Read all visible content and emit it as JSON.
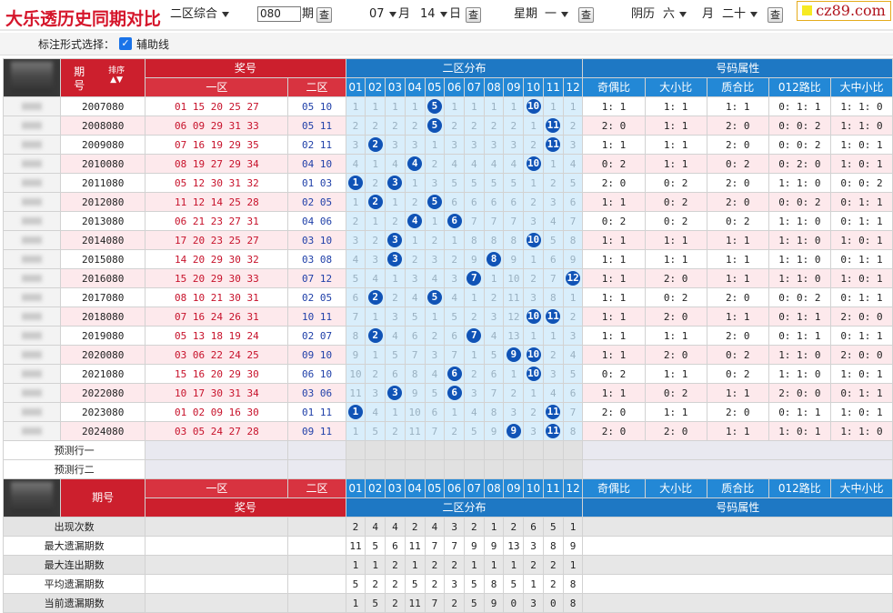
{
  "title": "大乐透历史同期对比",
  "toolbar": {
    "zone_select": "二区综合",
    "period_value": "080",
    "period_label": "期",
    "query_label": "查",
    "month_select": "07",
    "month_label": "月",
    "day_select": "14",
    "day_label": "日",
    "week_label": "星期",
    "week_select": "一",
    "lunar_label": "阴历",
    "lunar_month_select": "六",
    "lunar_month_label": "月",
    "lunar_day_select": "二十"
  },
  "logo": "cz89.com",
  "options": {
    "label": "标注形式选择：",
    "checkbox_label": "辅助线",
    "checked": true
  },
  "headers": {
    "period": "期号",
    "sort": "排序",
    "prize": "奖号",
    "zone1": "一区",
    "zone2": "二区",
    "dist": "二区分布",
    "attr": "号码属性",
    "nums": [
      "01",
      "02",
      "03",
      "04",
      "05",
      "06",
      "07",
      "08",
      "09",
      "10",
      "11",
      "12"
    ],
    "attrs": [
      "奇偶比",
      "大小比",
      "质合比",
      "012路比",
      "大中小比"
    ]
  },
  "rows": [
    {
      "period": "2007080",
      "z1": "01 15 20 25 27",
      "z2": "05 10",
      "dist": [
        "1",
        "1",
        "1",
        "1",
        "5",
        "1",
        "1",
        "1",
        "1",
        "10",
        "1",
        "1"
      ],
      "attr": [
        "1: 1",
        "1: 1",
        "1: 1",
        "0: 1: 1",
        "1: 1: 0"
      ]
    },
    {
      "period": "2008080",
      "z1": "06 09 29 31 33",
      "z2": "05 11",
      "dist": [
        "2",
        "2",
        "2",
        "2",
        "5",
        "2",
        "2",
        "2",
        "2",
        "1",
        "11",
        "2"
      ],
      "attr": [
        "2: 0",
        "1: 1",
        "2: 0",
        "0: 0: 2",
        "1: 1: 0"
      ]
    },
    {
      "period": "2009080",
      "z1": "07 16 19 29 35",
      "z2": "02 11",
      "dist": [
        "3",
        "2",
        "3",
        "3",
        "1",
        "3",
        "3",
        "3",
        "3",
        "2",
        "11",
        "3"
      ],
      "attr": [
        "1: 1",
        "1: 1",
        "2: 0",
        "0: 0: 2",
        "1: 0: 1"
      ]
    },
    {
      "period": "2010080",
      "z1": "08 19 27 29 34",
      "z2": "04 10",
      "dist": [
        "4",
        "1",
        "4",
        "4",
        "2",
        "4",
        "4",
        "4",
        "4",
        "10",
        "1",
        "4"
      ],
      "attr": [
        "0: 2",
        "1: 1",
        "0: 2",
        "0: 2: 0",
        "1: 0: 1"
      ]
    },
    {
      "period": "2011080",
      "z1": "05 12 30 31 32",
      "z2": "01 03",
      "dist": [
        "1",
        "2",
        "3",
        "1",
        "3",
        "5",
        "5",
        "5",
        "5",
        "1",
        "2",
        "5"
      ],
      "attr": [
        "2: 0",
        "0: 2",
        "2: 0",
        "1: 1: 0",
        "0: 0: 2"
      ]
    },
    {
      "period": "2012080",
      "z1": "11 12 14 25 28",
      "z2": "02 05",
      "dist": [
        "1",
        "2",
        "1",
        "2",
        "5",
        "6",
        "6",
        "6",
        "6",
        "2",
        "3",
        "6"
      ],
      "attr": [
        "1: 1",
        "0: 2",
        "2: 0",
        "0: 0: 2",
        "0: 1: 1"
      ]
    },
    {
      "period": "2013080",
      "z1": "06 21 23 27 31",
      "z2": "04 06",
      "dist": [
        "2",
        "1",
        "2",
        "4",
        "1",
        "6",
        "7",
        "7",
        "7",
        "3",
        "4",
        "7"
      ],
      "attr": [
        "0: 2",
        "0: 2",
        "0: 2",
        "1: 1: 0",
        "0: 1: 1"
      ]
    },
    {
      "period": "2014080",
      "z1": "17 20 23 25 27",
      "z2": "03 10",
      "dist": [
        "3",
        "2",
        "3",
        "1",
        "2",
        "1",
        "8",
        "8",
        "8",
        "10",
        "5",
        "8"
      ],
      "attr": [
        "1: 1",
        "1: 1",
        "1: 1",
        "1: 1: 0",
        "1: 0: 1"
      ]
    },
    {
      "period": "2015080",
      "z1": "14 20 29 30 32",
      "z2": "03 08",
      "dist": [
        "4",
        "3",
        "3",
        "2",
        "3",
        "2",
        "9",
        "8",
        "9",
        "1",
        "6",
        "9"
      ],
      "attr": [
        "1: 1",
        "1: 1",
        "1: 1",
        "1: 1: 0",
        "0: 1: 1"
      ]
    },
    {
      "period": "2016080",
      "z1": "15 20 29 30 33",
      "z2": "07 12",
      "dist": [
        "5",
        "4",
        "1",
        "3",
        "4",
        "3",
        "7",
        "1",
        "10",
        "2",
        "7",
        "12"
      ],
      "attr": [
        "1: 1",
        "2: 0",
        "1: 1",
        "1: 1: 0",
        "1: 0: 1"
      ]
    },
    {
      "period": "2017080",
      "z1": "08 10 21 30 31",
      "z2": "02 05",
      "dist": [
        "6",
        "2",
        "2",
        "4",
        "5",
        "4",
        "1",
        "2",
        "11",
        "3",
        "8",
        "1"
      ],
      "attr": [
        "1: 1",
        "0: 2",
        "2: 0",
        "0: 0: 2",
        "0: 1: 1"
      ]
    },
    {
      "period": "2018080",
      "z1": "07 16 24 26 31",
      "z2": "10 11",
      "dist": [
        "7",
        "1",
        "3",
        "5",
        "1",
        "5",
        "2",
        "3",
        "12",
        "10",
        "11",
        "2"
      ],
      "attr": [
        "1: 1",
        "2: 0",
        "1: 1",
        "0: 1: 1",
        "2: 0: 0"
      ]
    },
    {
      "period": "2019080",
      "z1": "05 13 18 19 24",
      "z2": "02 07",
      "dist": [
        "8",
        "2",
        "4",
        "6",
        "2",
        "6",
        "7",
        "4",
        "13",
        "1",
        "1",
        "3"
      ],
      "attr": [
        "1: 1",
        "1: 1",
        "2: 0",
        "0: 1: 1",
        "0: 1: 1"
      ]
    },
    {
      "period": "2020080",
      "z1": "03 06 22 24 25",
      "z2": "09 10",
      "dist": [
        "9",
        "1",
        "5",
        "7",
        "3",
        "7",
        "1",
        "5",
        "9",
        "10",
        "2",
        "4"
      ],
      "attr": [
        "1: 1",
        "2: 0",
        "0: 2",
        "1: 1: 0",
        "2: 0: 0"
      ]
    },
    {
      "period": "2021080",
      "z1": "15 16 20 29 30",
      "z2": "06 10",
      "dist": [
        "10",
        "2",
        "6",
        "8",
        "4",
        "6",
        "2",
        "6",
        "1",
        "10",
        "3",
        "5"
      ],
      "attr": [
        "0: 2",
        "1: 1",
        "0: 2",
        "1: 1: 0",
        "1: 0: 1"
      ]
    },
    {
      "period": "2022080",
      "z1": "10 17 30 31 34",
      "z2": "03 06",
      "dist": [
        "11",
        "3",
        "3",
        "9",
        "5",
        "6",
        "3",
        "7",
        "2",
        "1",
        "4",
        "6"
      ],
      "attr": [
        "1: 1",
        "0: 2",
        "1: 1",
        "2: 0: 0",
        "0: 1: 1"
      ]
    },
    {
      "period": "2023080",
      "z1": "01 02 09 16 30",
      "z2": "01 11",
      "dist": [
        "1",
        "4",
        "1",
        "10",
        "6",
        "1",
        "4",
        "8",
        "3",
        "2",
        "11",
        "7"
      ],
      "attr": [
        "2: 0",
        "1: 1",
        "2: 0",
        "0: 1: 1",
        "1: 0: 1"
      ]
    },
    {
      "period": "2024080",
      "z1": "03 05 24 27 28",
      "z2": "09 11",
      "dist": [
        "1",
        "5",
        "2",
        "11",
        "7",
        "2",
        "5",
        "9",
        "9",
        "3",
        "11",
        "8"
      ],
      "attr": [
        "2: 0",
        "2: 0",
        "1: 1",
        "1: 0: 1",
        "1: 1: 0"
      ]
    }
  ],
  "hits": [
    [
      5,
      10
    ],
    [
      5,
      11
    ],
    [
      2,
      11
    ],
    [
      4,
      10
    ],
    [
      1,
      3
    ],
    [
      2,
      5
    ],
    [
      4,
      6
    ],
    [
      3,
      10
    ],
    [
      3,
      8
    ],
    [
      7,
      12
    ],
    [
      2,
      5
    ],
    [
      10,
      11
    ],
    [
      2,
      7
    ],
    [
      9,
      10
    ],
    [
      6,
      10
    ],
    [
      3,
      6
    ],
    [
      1,
      11
    ],
    [
      9,
      11
    ]
  ],
  "predict": [
    "预测行一",
    "预测行二"
  ],
  "stats": [
    {
      "label": "出现次数",
      "vals": [
        "2",
        "4",
        "4",
        "2",
        "4",
        "3",
        "2",
        "1",
        "2",
        "6",
        "5",
        "1"
      ]
    },
    {
      "label": "最大遗漏期数",
      "vals": [
        "11",
        "5",
        "6",
        "11",
        "7",
        "7",
        "9",
        "9",
        "13",
        "3",
        "8",
        "9"
      ]
    },
    {
      "label": "最大连出期数",
      "vals": [
        "1",
        "1",
        "2",
        "1",
        "2",
        "2",
        "1",
        "1",
        "1",
        "2",
        "2",
        "1"
      ]
    },
    {
      "label": "平均遗漏期数",
      "vals": [
        "5",
        "2",
        "2",
        "5",
        "2",
        "3",
        "5",
        "8",
        "5",
        "1",
        "2",
        "8"
      ]
    },
    {
      "label": "当前遗漏期数",
      "vals": [
        "1",
        "5",
        "2",
        "11",
        "7",
        "2",
        "5",
        "9",
        "0",
        "3",
        "0",
        "8"
      ]
    }
  ]
}
